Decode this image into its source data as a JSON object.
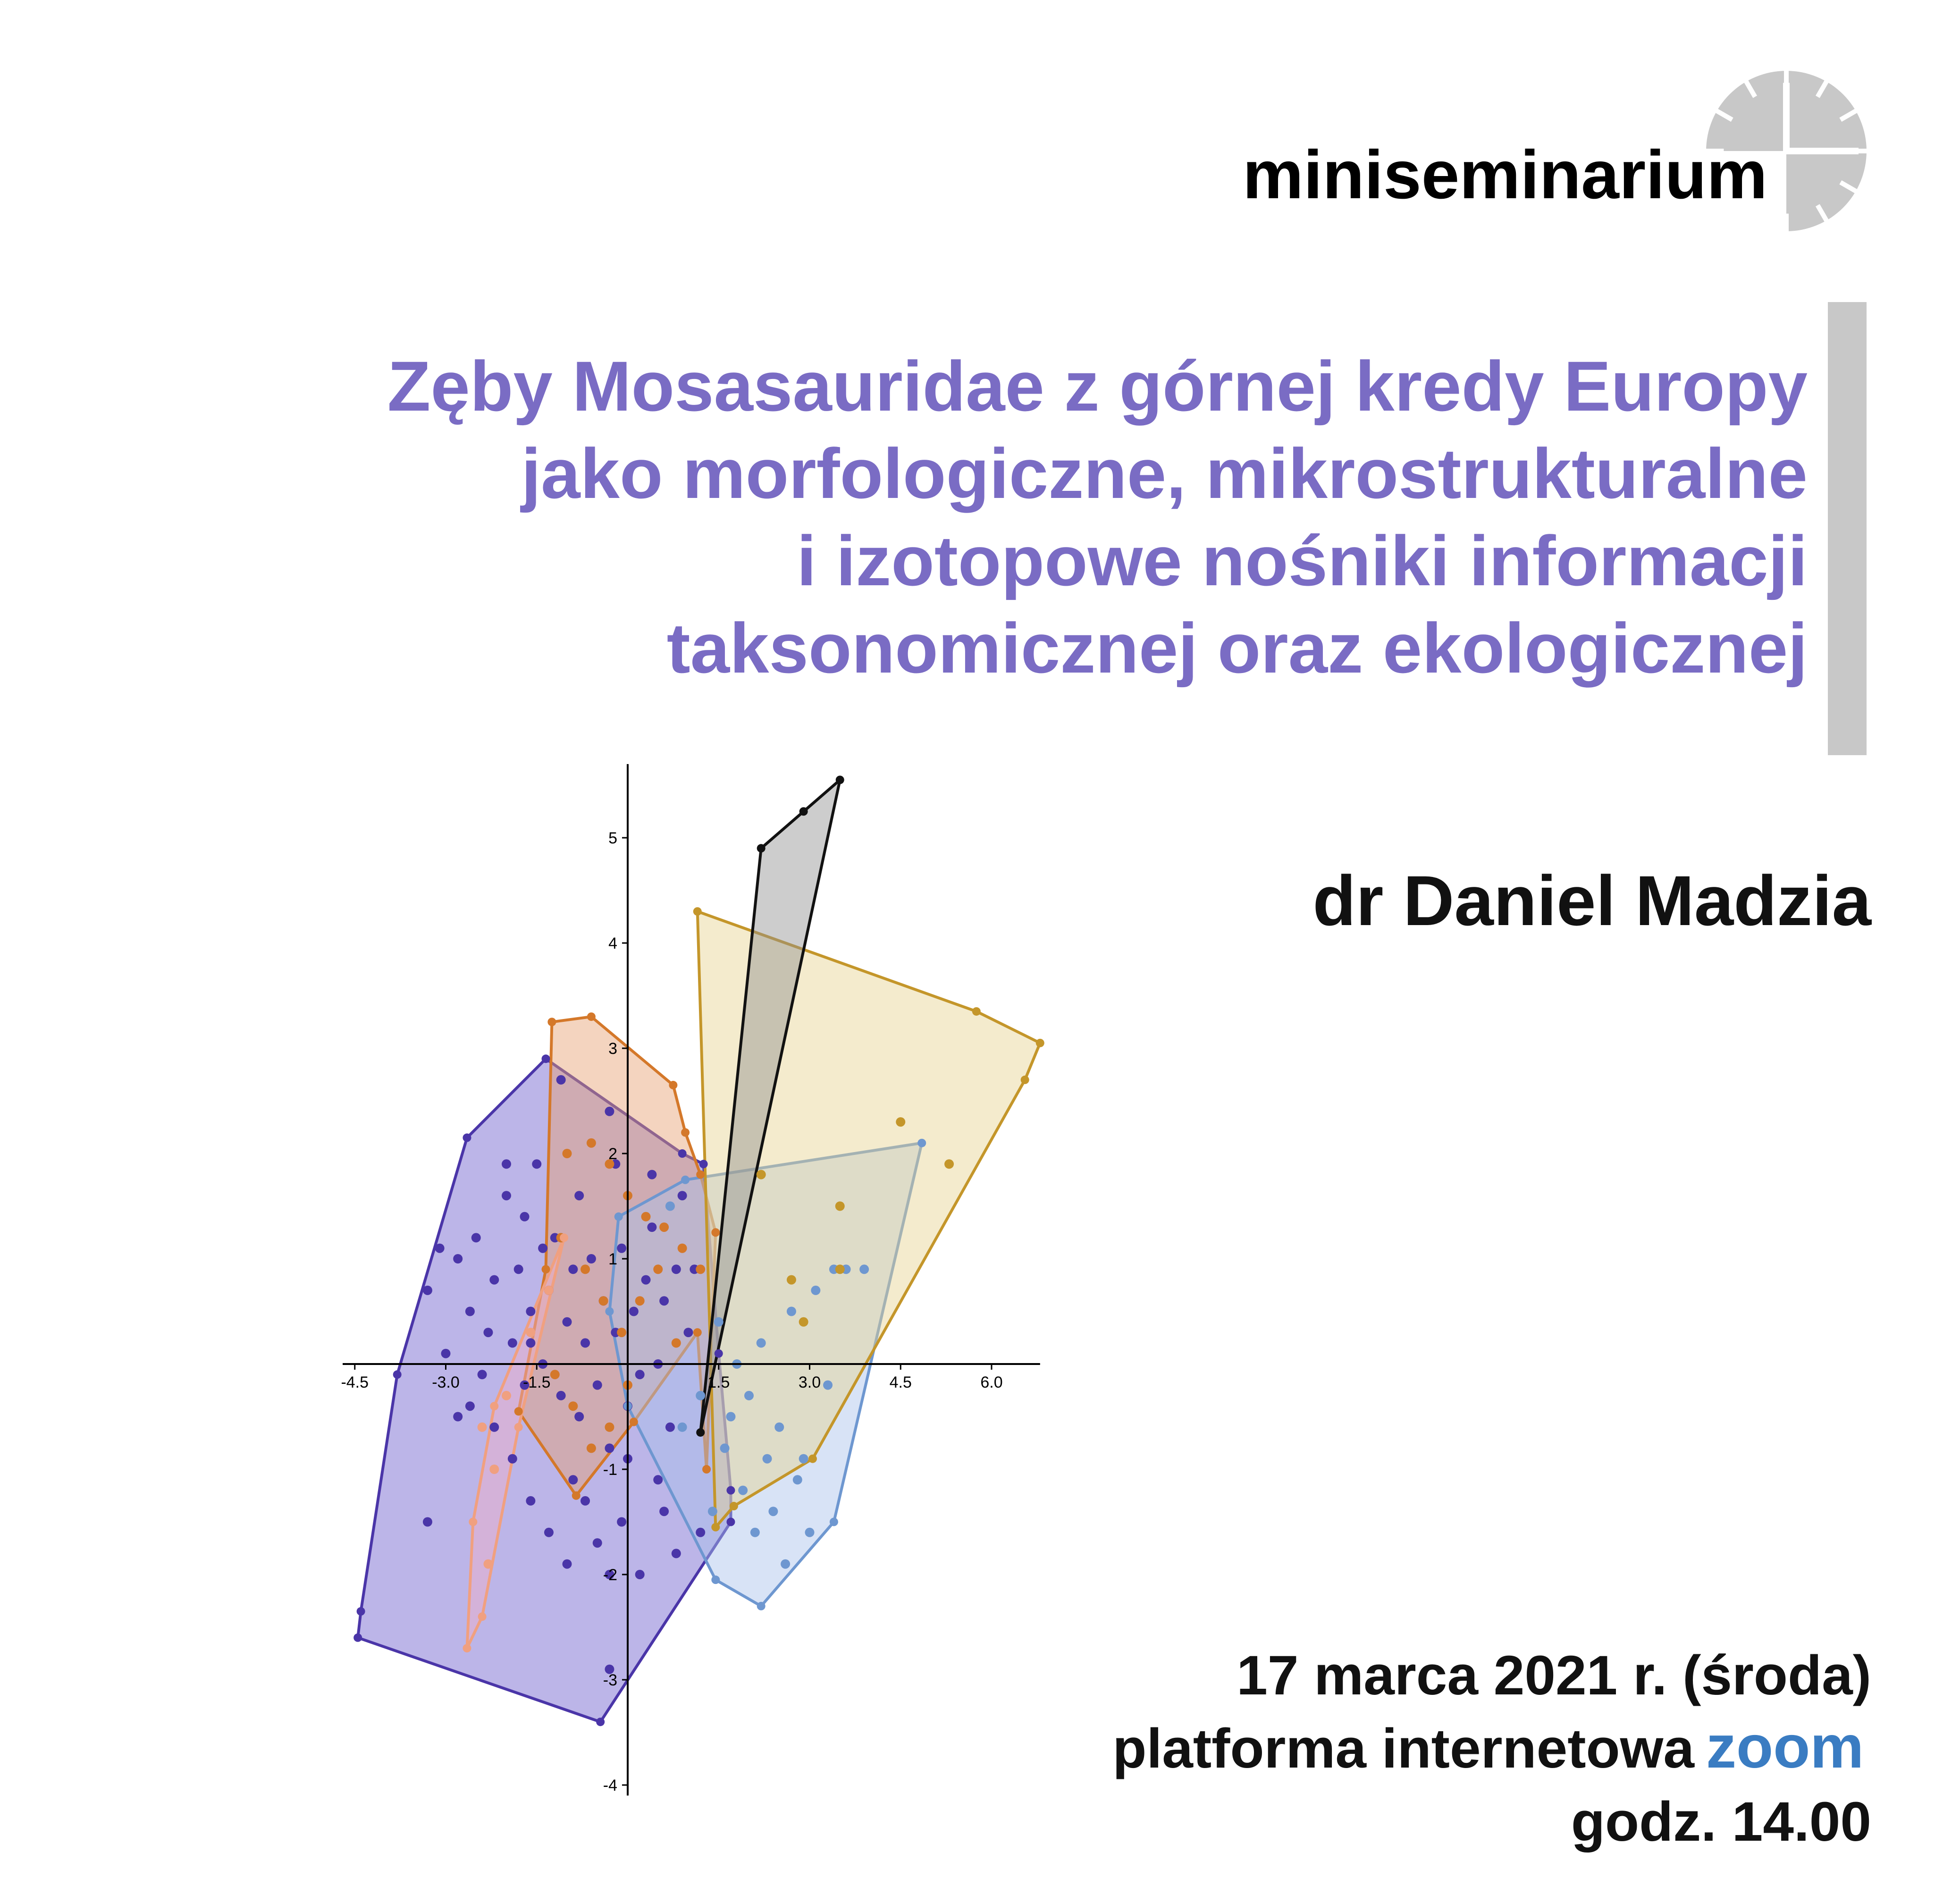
{
  "brand": {
    "name": "miniseminarium",
    "logo_icon": "clock-icon",
    "logo_color": "#c8c8c8"
  },
  "title": {
    "lines": [
      "Zęby Mosasauridae z górnej kredy Europy",
      "jako morfologiczne, mikrostrukturalne",
      "i izotopowe nośniki informacji",
      "taksonomicznej oraz ekologicznej"
    ],
    "color": "#7a6cc4",
    "accent_bar_color": "#c8c8c8"
  },
  "speaker": "dr Daniel Madzia",
  "event": {
    "date": "17 marca 2021 r. (środa)",
    "platform": "platforma internetowa",
    "platform_logo": "zoom",
    "platform_logo_color": "#3a7cc2",
    "time": "godz. 14.00"
  },
  "chart_data": {
    "type": "scatter",
    "title": "",
    "xlabel": "",
    "ylabel": "",
    "xlim": [
      -4.7,
      6.8
    ],
    "ylim": [
      -4.1,
      5.7
    ],
    "x_ticks": [
      "-4.5",
      "-3.0",
      "-1.5",
      "1.5",
      "3.0",
      "4.5",
      "6.0"
    ],
    "y_ticks": [
      "-4",
      "-3",
      "-2",
      "-1",
      "1",
      "2",
      "3",
      "4",
      "5"
    ],
    "grid": false,
    "series": [
      {
        "color": "#4a35a8",
        "fill": "#6a5ccd",
        "hull": [
          [
            -1.35,
            2.9
          ],
          [
            0.9,
            2.0
          ],
          [
            1.25,
            1.9
          ],
          [
            1.5,
            0.1
          ],
          [
            1.7,
            -1.2
          ],
          [
            1.7,
            -1.5
          ],
          [
            -0.45,
            -3.4
          ],
          [
            -4.45,
            -2.6
          ],
          [
            -4.4,
            -2.35
          ],
          [
            -3.8,
            -0.1
          ],
          [
            -2.65,
            2.15
          ]
        ],
        "points": [
          [
            -3.3,
            0.7
          ],
          [
            -3.1,
            1.1
          ],
          [
            -3.0,
            0.1
          ],
          [
            -2.8,
            1.0
          ],
          [
            -2.6,
            0.5
          ],
          [
            -2.5,
            1.2
          ],
          [
            -2.3,
            0.3
          ],
          [
            -2.2,
            0.8
          ],
          [
            -2.0,
            1.6
          ],
          [
            -1.9,
            0.2
          ],
          [
            -1.8,
            0.9
          ],
          [
            -1.7,
            1.4
          ],
          [
            -1.6,
            0.5
          ],
          [
            -1.5,
            1.9
          ],
          [
            -1.4,
            0.0
          ],
          [
            -1.3,
            0.7
          ],
          [
            -1.2,
            1.2
          ],
          [
            -1.1,
            -0.3
          ],
          [
            -1.0,
            0.4
          ],
          [
            -0.9,
            0.9
          ],
          [
            -0.8,
            -0.5
          ],
          [
            -0.7,
            0.2
          ],
          [
            -0.6,
            1.0
          ],
          [
            -0.5,
            -0.2
          ],
          [
            -0.4,
            0.6
          ],
          [
            -0.3,
            -0.8
          ],
          [
            -0.2,
            0.3
          ],
          [
            -0.1,
            1.1
          ],
          [
            0.0,
            -0.4
          ],
          [
            0.1,
            0.5
          ],
          [
            0.2,
            -0.1
          ],
          [
            0.3,
            0.8
          ],
          [
            0.4,
            1.3
          ],
          [
            0.5,
            0.0
          ],
          [
            0.6,
            0.6
          ],
          [
            0.7,
            -0.6
          ],
          [
            0.8,
            0.9
          ],
          [
            1.0,
            0.3
          ],
          [
            -2.6,
            -0.4
          ],
          [
            -2.2,
            -0.6
          ],
          [
            -1.9,
            -0.9
          ],
          [
            -1.6,
            -1.3
          ],
          [
            -1.3,
            -1.6
          ],
          [
            -1.0,
            -1.9
          ],
          [
            -0.7,
            -1.3
          ],
          [
            -0.5,
            -1.7
          ],
          [
            -0.3,
            -2.0
          ],
          [
            -0.1,
            -1.5
          ],
          [
            0.2,
            -2.0
          ],
          [
            0.5,
            -1.1
          ],
          [
            0.8,
            -1.8
          ],
          [
            1.2,
            -1.6
          ],
          [
            -3.3,
            -1.5
          ],
          [
            -0.3,
            -2.9
          ],
          [
            -2.0,
            1.9
          ],
          [
            -1.4,
            1.1
          ],
          [
            -0.8,
            1.6
          ],
          [
            -0.2,
            1.9
          ],
          [
            0.4,
            1.8
          ],
          [
            0.9,
            1.6
          ],
          [
            -1.1,
            2.7
          ],
          [
            -0.3,
            2.4
          ],
          [
            1.1,
            0.9
          ],
          [
            -2.4,
            -0.1
          ],
          [
            -1.7,
            -0.2
          ],
          [
            -0.9,
            -1.1
          ],
          [
            0.0,
            -0.9
          ],
          [
            0.6,
            -1.4
          ],
          [
            -1.6,
            0.2
          ],
          [
            -2.8,
            -0.5
          ]
        ]
      },
      {
        "color": "#d4782a",
        "fill": "#e6a070",
        "hull": [
          [
            -1.25,
            3.25
          ],
          [
            -0.6,
            3.3
          ],
          [
            0.75,
            2.65
          ],
          [
            0.95,
            2.2
          ],
          [
            1.2,
            1.8
          ],
          [
            1.45,
            1.25
          ],
          [
            1.3,
            -1.0
          ],
          [
            1.15,
            0.3
          ],
          [
            0.1,
            -0.55
          ],
          [
            -0.85,
            -1.25
          ],
          [
            -1.8,
            -0.45
          ],
          [
            -1.35,
            0.9
          ]
        ],
        "points": [
          [
            -1.0,
            2.0
          ],
          [
            -0.6,
            2.1
          ],
          [
            -0.3,
            1.9
          ],
          [
            0.0,
            1.6
          ],
          [
            0.3,
            1.4
          ],
          [
            0.6,
            1.3
          ],
          [
            0.9,
            1.1
          ],
          [
            1.2,
            0.9
          ],
          [
            -1.1,
            1.2
          ],
          [
            -0.7,
            0.9
          ],
          [
            -0.4,
            0.6
          ],
          [
            -0.1,
            0.3
          ],
          [
            0.2,
            0.6
          ],
          [
            0.5,
            0.9
          ],
          [
            0.8,
            0.2
          ],
          [
            -1.2,
            -0.1
          ],
          [
            -0.9,
            -0.4
          ],
          [
            -0.6,
            -0.8
          ],
          [
            -0.3,
            -0.6
          ],
          [
            0.0,
            -0.2
          ]
        ]
      },
      {
        "color": "#f0a080",
        "fill": "#f2b0c8",
        "hull": [
          [
            -1.05,
            1.2
          ],
          [
            -2.2,
            -0.4
          ],
          [
            -2.55,
            -1.5
          ],
          [
            -2.65,
            -2.7
          ],
          [
            -2.4,
            -2.4
          ],
          [
            -1.8,
            -0.6
          ]
        ],
        "points": [
          [
            -2.4,
            -0.6
          ],
          [
            -2.2,
            -1.0
          ],
          [
            -2.0,
            -0.3
          ],
          [
            -1.6,
            0.3
          ],
          [
            -1.3,
            0.7
          ],
          [
            -2.3,
            -1.9
          ]
        ]
      },
      {
        "color": "#6e97d0",
        "fill": "#a8c2ea",
        "hull": [
          [
            -0.15,
            1.4
          ],
          [
            0.95,
            1.75
          ],
          [
            4.85,
            2.1
          ],
          [
            3.4,
            -1.5
          ],
          [
            2.2,
            -2.3
          ],
          [
            1.45,
            -2.05
          ],
          [
            0.0,
            -0.4
          ],
          [
            -0.3,
            0.5
          ]
        ],
        "points": [
          [
            0.7,
            1.5
          ],
          [
            1.5,
            0.4
          ],
          [
            1.8,
            0.0
          ],
          [
            2.0,
            -0.3
          ],
          [
            2.2,
            0.2
          ],
          [
            2.5,
            -0.6
          ],
          [
            2.7,
            0.5
          ],
          [
            2.9,
            -0.9
          ],
          [
            3.1,
            0.7
          ],
          [
            3.3,
            -0.2
          ],
          [
            1.6,
            -0.8
          ],
          [
            1.9,
            -1.2
          ],
          [
            2.1,
            -1.6
          ],
          [
            2.4,
            -1.4
          ],
          [
            2.6,
            -1.9
          ],
          [
            2.8,
            -1.1
          ],
          [
            3.0,
            -1.6
          ],
          [
            3.4,
            0.9
          ],
          [
            3.6,
            0.9
          ],
          [
            3.9,
            0.9
          ],
          [
            1.2,
            -0.3
          ],
          [
            0.9,
            -0.6
          ],
          [
            1.4,
            -1.4
          ],
          [
            2.3,
            -0.9
          ],
          [
            1.7,
            -0.5
          ]
        ]
      },
      {
        "color": "#c4962a",
        "fill": "#e6d290",
        "hull": [
          [
            1.15,
            4.3
          ],
          [
            5.75,
            3.35
          ],
          [
            6.8,
            3.05
          ],
          [
            6.55,
            2.7
          ],
          [
            3.05,
            -0.9
          ],
          [
            1.75,
            -1.35
          ],
          [
            1.45,
            -1.55
          ]
        ],
        "points": [
          [
            2.2,
            1.8
          ],
          [
            2.7,
            0.8
          ],
          [
            2.9,
            0.4
          ],
          [
            3.5,
            1.5
          ],
          [
            3.5,
            0.9
          ],
          [
            4.5,
            2.3
          ],
          [
            5.3,
            1.9
          ]
        ]
      },
      {
        "color": "#111111",
        "fill": "#909090",
        "hull": [
          [
            2.2,
            4.9
          ],
          [
            2.9,
            5.25
          ],
          [
            3.5,
            5.55
          ],
          [
            1.2,
            -0.65
          ]
        ],
        "points": []
      }
    ]
  }
}
